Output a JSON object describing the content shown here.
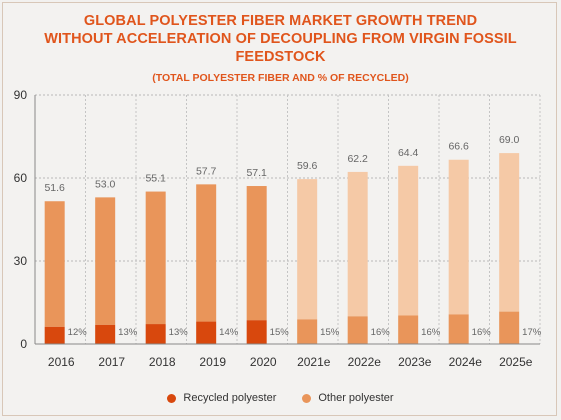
{
  "title_line1": "GLOBAL POLYESTER FIBER MARKET GROWTH TREND",
  "title_line2": "WITHOUT ACCELERATION OF DECOUPLING FROM VIRGIN FOSSIL FEEDSTOCK",
  "subtitle": "(TOTAL POLYESTER FIBER AND % OF RECYCLED)",
  "colors": {
    "recycled": "#d8480d",
    "other": "#e9955a",
    "recycled_forecast": "#e9955a",
    "other_forecast": "#f5c9a6",
    "title": "#e0551c"
  },
  "legend": {
    "recycled_label": "Recycled polyester",
    "other_label": "Other polyester"
  },
  "chart_data": {
    "type": "bar",
    "stacked": true,
    "categories": [
      "2016",
      "2017",
      "2018",
      "2019",
      "2020",
      "2021e",
      "2022e",
      "2023e",
      "2024e",
      "2025e"
    ],
    "totals": [
      51.6,
      53.0,
      55.1,
      57.7,
      57.1,
      59.6,
      62.2,
      64.4,
      66.6,
      69.0
    ],
    "total_labels": [
      "51.6",
      "53.0",
      "55.1",
      "57.7",
      "57.1",
      "59.6",
      "62.2",
      "64.4",
      "66.6",
      "69.0"
    ],
    "recycled_share_labels": [
      "12%",
      "13%",
      "13%",
      "14%",
      "15%",
      "15%",
      "16%",
      "16%",
      "16%",
      "17%"
    ],
    "recycled_share": [
      12,
      13,
      13,
      14,
      15,
      15,
      16,
      16,
      16,
      17
    ],
    "forecast_from_index": 5,
    "series": [
      {
        "name": "Recycled polyester",
        "values": [
          6.2,
          6.9,
          7.2,
          8.1,
          8.6,
          8.9,
          10.0,
          10.3,
          10.7,
          11.7
        ]
      },
      {
        "name": "Other polyester",
        "values": [
          45.4,
          46.1,
          47.9,
          49.6,
          48.5,
          50.7,
          52.2,
          54.1,
          55.9,
          57.3
        ]
      }
    ],
    "yticks": [
      "0",
      "30",
      "60",
      "90"
    ],
    "ylim": [
      0,
      90
    ],
    "grid": true,
    "legend_position": "bottom"
  }
}
